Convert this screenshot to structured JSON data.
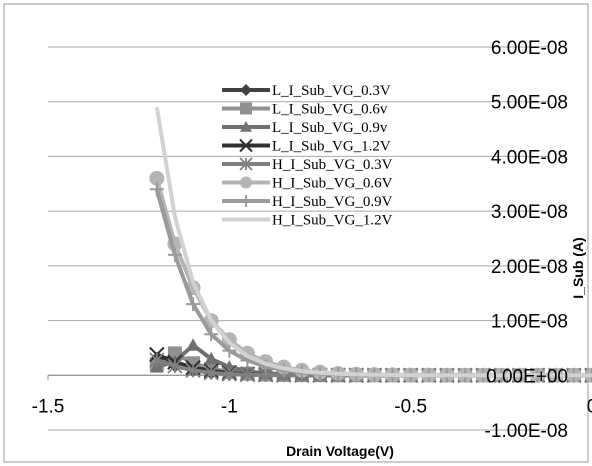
{
  "chart_data": {
    "type": "line",
    "xlabel": "Drain Voltage(V)",
    "ylabel": "I_Sub (A)",
    "xlim": [
      -1.5,
      0
    ],
    "ylim": [
      -1e-08,
      6e-08
    ],
    "grid": "horizontal",
    "legend_position": "top-left-inside",
    "x_ticks": [
      {
        "value": -1.5,
        "label": "-1.5"
      },
      {
        "value": -1.0,
        "label": "-1"
      },
      {
        "value": -0.5,
        "label": "-0.5"
      },
      {
        "value": 0.0,
        "label": "0"
      }
    ],
    "y_ticks": [
      {
        "value": -1e-08,
        "label": "-1.00E-08"
      },
      {
        "value": 0.0,
        "label": "0.00E+00"
      },
      {
        "value": 1e-08,
        "label": "1.00E-08"
      },
      {
        "value": 2e-08,
        "label": "2.00E-08"
      },
      {
        "value": 3e-08,
        "label": "3.00E-08"
      },
      {
        "value": 4e-08,
        "label": "4.00E-08"
      },
      {
        "value": 5e-08,
        "label": "5.00E-08"
      },
      {
        "value": 6e-08,
        "label": "6.00E-08"
      }
    ],
    "x": [
      -1.2,
      -1.15,
      -1.1,
      -1.05,
      -1.0,
      -0.95,
      -0.9,
      -0.85,
      -0.8,
      -0.75,
      -0.7,
      -0.65,
      -0.6,
      -0.55,
      -0.5,
      -0.45,
      -0.4,
      -0.35,
      -0.3,
      -0.25,
      -0.2,
      -0.15,
      -0.1,
      -0.05,
      0.0
    ],
    "series": [
      {
        "name": "L_I_Sub_VG_0.3V",
        "color": "#404040",
        "marker": "diamond",
        "values": [
          3e-09,
          1.8e-09,
          1e-09,
          5e-10,
          2.5e-10,
          1.2e-10,
          6e-11,
          3e-11,
          1.5e-11,
          8e-12,
          4e-12,
          2e-12,
          1e-12,
          0,
          0,
          0,
          0,
          0,
          0,
          0,
          0,
          0,
          0,
          0,
          0
        ]
      },
      {
        "name": "L_I_Sub_VG_0.6v",
        "color": "#909090",
        "marker": "square",
        "values": [
          2e-09,
          4e-09,
          2.2e-09,
          1.2e-09,
          6e-10,
          3e-10,
          1.5e-10,
          7e-11,
          3.5e-11,
          1.7e-11,
          8e-12,
          4e-12,
          2e-12,
          0,
          0,
          0,
          0,
          0,
          0,
          0,
          0,
          0,
          0,
          0,
          0
        ]
      },
      {
        "name": "L_I_Sub_VG_0.9v",
        "color": "#707070",
        "marker": "triangle",
        "values": [
          1.5e-09,
          2.5e-09,
          5.5e-09,
          3e-09,
          1.5e-09,
          7.5e-10,
          3.7e-10,
          1.8e-10,
          9e-11,
          4.5e-11,
          2e-11,
          1e-11,
          5e-12,
          0,
          0,
          0,
          0,
          0,
          0,
          0,
          0,
          0,
          0,
          0,
          0
        ]
      },
      {
        "name": "L_I_Sub_VG_1.2V",
        "color": "#303030",
        "marker": "x",
        "values": [
          3.8e-09,
          2.4e-09,
          1.4e-09,
          8e-10,
          4e-10,
          2e-10,
          1e-10,
          5e-11,
          2.5e-11,
          1.2e-11,
          6e-12,
          3e-12,
          1e-12,
          0,
          0,
          0,
          0,
          0,
          0,
          0,
          0,
          0,
          0,
          0,
          0
        ]
      },
      {
        "name": "H_I_Sub_VG_0.3V",
        "color": "#808080",
        "marker": "asterisk",
        "values": [
          2.8e-09,
          1.7e-09,
          9e-10,
          4.5e-10,
          2.2e-10,
          1.1e-10,
          5.5e-11,
          2.7e-11,
          1.3e-11,
          6e-12,
          3e-12,
          1.5e-12,
          0,
          0,
          0,
          0,
          0,
          0,
          0,
          0,
          0,
          0,
          0,
          0,
          0
        ]
      },
      {
        "name": "H_I_Sub_VG_0.6V",
        "color": "#b4b4b4",
        "marker": "circle",
        "values": [
          3.6e-08,
          2.4e-08,
          1.6e-08,
          1e-08,
          6.5e-09,
          4e-09,
          2.5e-09,
          1.5e-09,
          9e-10,
          5.5e-10,
          3.3e-10,
          2e-10,
          1.2e-10,
          7e-11,
          4e-11,
          2.5e-11,
          1.5e-11,
          9e-12,
          5e-12,
          3e-12,
          2e-12,
          1e-12,
          0,
          0,
          0
        ]
      },
      {
        "name": "H_I_Sub_VG_0.9V",
        "color": "#9a9a9a",
        "marker": "plus",
        "values": [
          3.4e-08,
          2.2e-08,
          1.3e-08,
          7.5e-09,
          4.5e-09,
          2.7e-09,
          1.6e-09,
          9.5e-10,
          5.5e-10,
          3.2e-10,
          1.9e-10,
          1.1e-10,
          6.5e-11,
          3.8e-11,
          2.2e-11,
          1.3e-11,
          7.5e-12,
          4.4e-12,
          2.6e-12,
          1.5e-12,
          1e-12,
          0,
          0,
          0,
          0
        ]
      },
      {
        "name": "H_I_Sub_VG_1.2V",
        "color": "#d2d2d2",
        "marker": "none",
        "values": [
          4.9e-08,
          2.9e-08,
          1.7e-08,
          1e-08,
          6e-09,
          3.5e-09,
          2.1e-09,
          1.25e-09,
          7.5e-10,
          4.5e-10,
          2.7e-10,
          1.6e-10,
          9.5e-11,
          5.7e-11,
          3.4e-11,
          2e-11,
          1.2e-11,
          7e-12,
          4e-12,
          2.5e-12,
          1.5e-12,
          1e-12,
          0,
          0,
          0
        ]
      }
    ]
  }
}
